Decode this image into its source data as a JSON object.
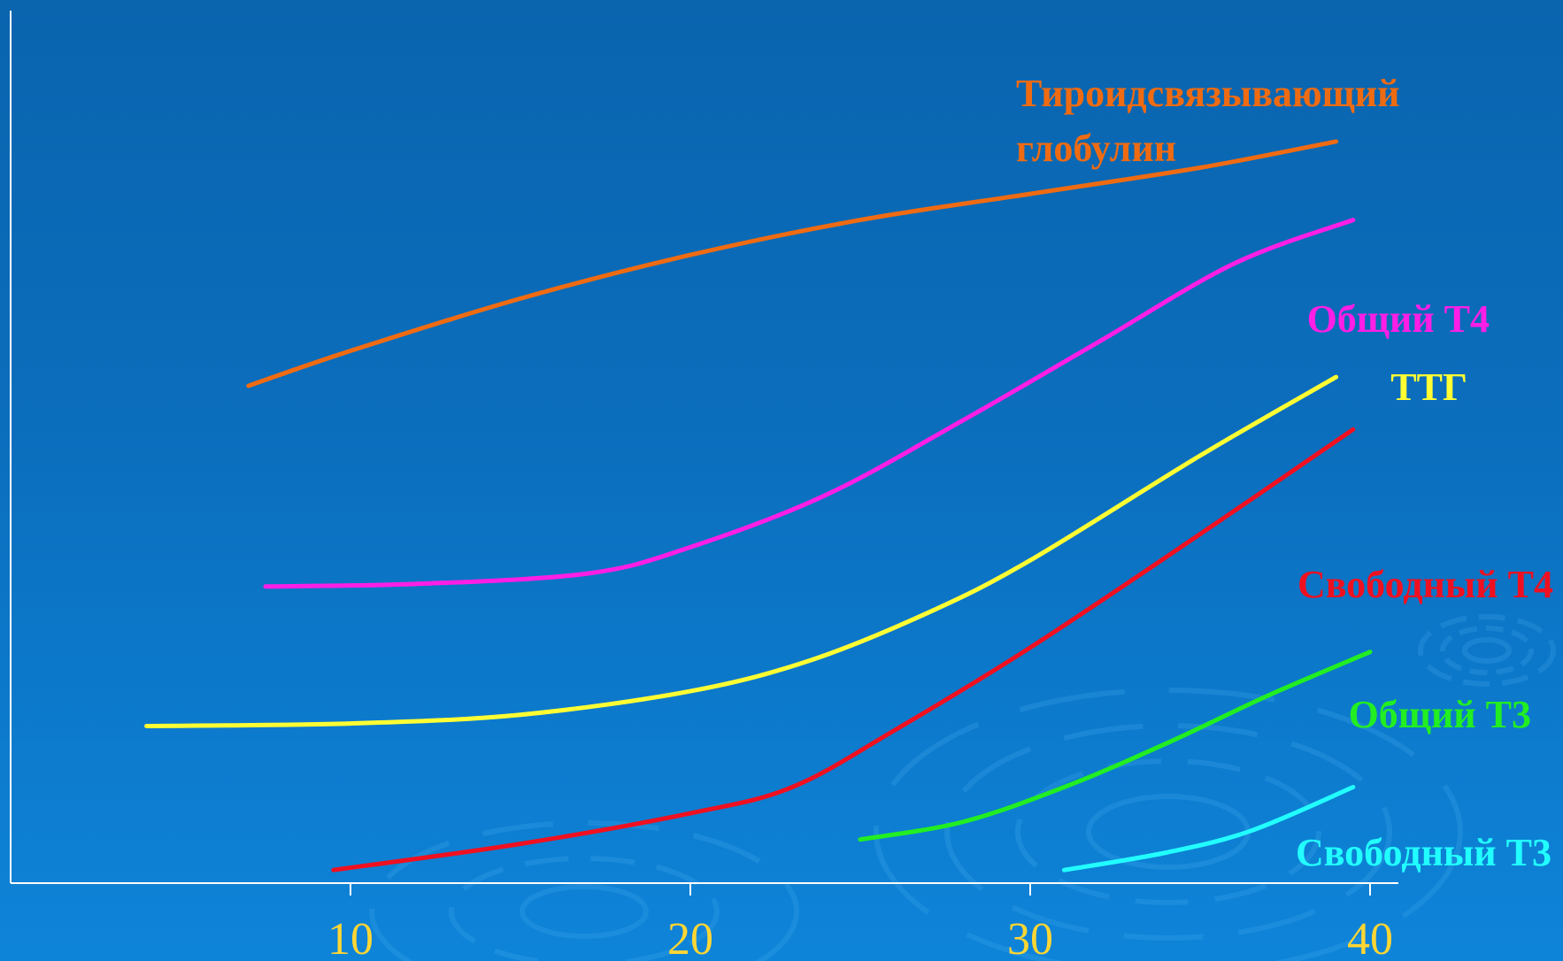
{
  "chart_data": {
    "type": "line",
    "title": "",
    "xlabel": "",
    "ylabel": "",
    "xlim": [
      0,
      40.5
    ],
    "ylim": [
      0,
      100
    ],
    "grid": false,
    "x_ticks": [
      10,
      20,
      30,
      40
    ],
    "x_tick_labels": [
      "10",
      "20",
      "30",
      "40"
    ],
    "y_ticks": [],
    "series": [
      {
        "name": "Тироидсвязывающий глобулин",
        "label_lines": [
          "Тироидсвязывающий",
          "глобулин"
        ],
        "color": "#ef6b12",
        "x": [
          7,
          10,
          15,
          20,
          25,
          30,
          35,
          39
        ],
        "y": [
          57,
          61,
          67,
          72,
          76,
          79,
          82,
          85
        ]
      },
      {
        "name": "Общий Т4",
        "label_lines": [
          "Общий Т4"
        ],
        "color": "#ff1ee6",
        "x": [
          7.5,
          12,
          17,
          20,
          24,
          28,
          32,
          36,
          39.5
        ],
        "y": [
          34,
          34.3,
          35.5,
          38.5,
          44.5,
          53,
          62,
          71,
          76
        ]
      },
      {
        "name": "ТТГ",
        "label_lines": [
          "ТТГ"
        ],
        "color": "#ffff33",
        "x": [
          4,
          10,
          15,
          20,
          23.5,
          27,
          30,
          35,
          39
        ],
        "y": [
          18,
          18.3,
          19.3,
          22,
          25.5,
          31,
          37,
          49,
          58
        ]
      },
      {
        "name": "Свободный Т4",
        "label_lines": [
          "Свободный Т4"
        ],
        "color": "#f01020",
        "x": [
          9.5,
          15,
          20,
          23,
          26,
          30,
          35,
          39.5
        ],
        "y": [
          1.5,
          4.5,
          8,
          11,
          17.5,
          27,
          40,
          52
        ]
      },
      {
        "name": "Общий Т3",
        "label_lines": [
          "Общий Т3"
        ],
        "color": "#22ee22",
        "x": [
          25,
          28,
          31,
          34,
          37,
          40
        ],
        "y": [
          5,
          7,
          11,
          16,
          21.5,
          26.5
        ]
      },
      {
        "name": "Свободный Т3",
        "label_lines": [
          "Свободный Т3"
        ],
        "color": "#22ffff",
        "x": [
          31,
          34,
          36.5,
          39.5
        ],
        "y": [
          1.5,
          3.5,
          6,
          11
        ]
      }
    ],
    "colors": {
      "axis": "#ffffff",
      "tick_label": "#ffd633",
      "background_top": "#0a64ae",
      "background_bottom": "#0e84d9"
    }
  }
}
